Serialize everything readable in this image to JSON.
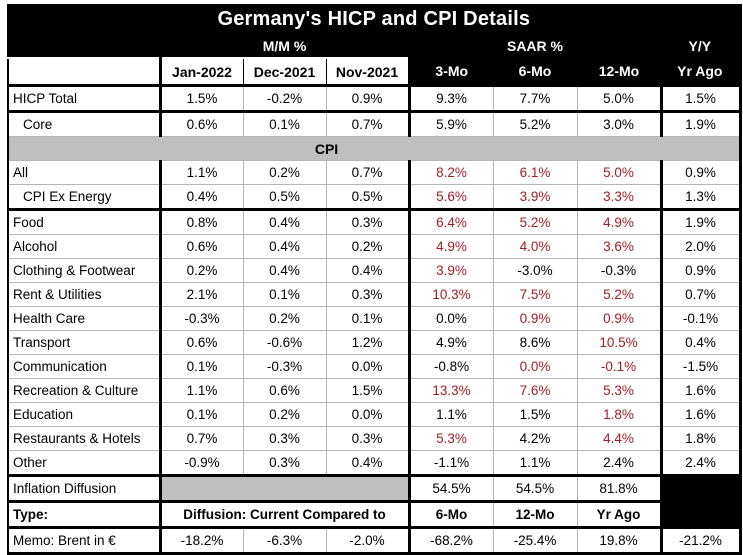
{
  "title": "Germany's HICP and CPI Details",
  "groups": {
    "mm": "M/M %",
    "saar": "SAAR %",
    "yy": "Y/Y"
  },
  "columns": [
    "Jan-2022",
    "Dec-2021",
    "Nov-2021",
    "3-Mo",
    "6-Mo",
    "12-Mo",
    "Yr Ago"
  ],
  "colors": {
    "red": "#a21e28",
    "band_gray": "#bfbfbf",
    "header_bg": "#000000",
    "grid": "#b5b5b5"
  },
  "rows": [
    {
      "label": "HICP Total",
      "sep_after": true,
      "cells": [
        {
          "v": "1.5%"
        },
        {
          "v": "-0.2%"
        },
        {
          "v": "0.9%"
        },
        {
          "v": "9.3%"
        },
        {
          "v": "7.7%"
        },
        {
          "v": "5.0%"
        },
        {
          "v": "1.5%"
        }
      ]
    },
    {
      "label": "Core",
      "indent": true,
      "cells": [
        {
          "v": "0.6%"
        },
        {
          "v": "0.1%"
        },
        {
          "v": "0.7%"
        },
        {
          "v": "5.9%"
        },
        {
          "v": "5.2%"
        },
        {
          "v": "3.0%"
        },
        {
          "v": "1.9%"
        }
      ]
    },
    {
      "type": "section",
      "label": "CPI"
    },
    {
      "label": "All",
      "cells": [
        {
          "v": "1.1%"
        },
        {
          "v": "0.2%"
        },
        {
          "v": "0.7%"
        },
        {
          "v": "8.2%",
          "r": true
        },
        {
          "v": "6.1%",
          "r": true
        },
        {
          "v": "5.0%",
          "r": true
        },
        {
          "v": "0.9%"
        }
      ]
    },
    {
      "label": "CPI Ex Energy",
      "indent": true,
      "sep_after": true,
      "cells": [
        {
          "v": "0.4%"
        },
        {
          "v": "0.5%"
        },
        {
          "v": "0.5%"
        },
        {
          "v": "5.6%",
          "r": true
        },
        {
          "v": "3.9%",
          "r": true
        },
        {
          "v": "3.3%",
          "r": true
        },
        {
          "v": "1.3%"
        }
      ]
    },
    {
      "label": "Food",
      "cells": [
        {
          "v": "0.8%"
        },
        {
          "v": "0.4%"
        },
        {
          "v": "0.3%"
        },
        {
          "v": "6.4%",
          "r": true
        },
        {
          "v": "5.2%",
          "r": true
        },
        {
          "v": "4.9%",
          "r": true
        },
        {
          "v": "1.9%"
        }
      ]
    },
    {
      "label": "Alcohol",
      "cells": [
        {
          "v": "0.6%"
        },
        {
          "v": "0.4%"
        },
        {
          "v": "0.2%"
        },
        {
          "v": "4.9%",
          "r": true
        },
        {
          "v": "4.0%",
          "r": true
        },
        {
          "v": "3.6%",
          "r": true
        },
        {
          "v": "2.0%"
        }
      ]
    },
    {
      "label": "Clothing & Footwear",
      "cells": [
        {
          "v": "0.2%"
        },
        {
          "v": "0.4%"
        },
        {
          "v": "0.4%"
        },
        {
          "v": "3.9%",
          "r": true
        },
        {
          "v": "-3.0%"
        },
        {
          "v": "-0.3%"
        },
        {
          "v": "0.9%"
        }
      ]
    },
    {
      "label": "Rent & Utilities",
      "cells": [
        {
          "v": "2.1%"
        },
        {
          "v": "0.1%"
        },
        {
          "v": "0.3%"
        },
        {
          "v": "10.3%",
          "r": true
        },
        {
          "v": "7.5%",
          "r": true
        },
        {
          "v": "5.2%",
          "r": true
        },
        {
          "v": "0.7%"
        }
      ]
    },
    {
      "label": "Health Care",
      "cells": [
        {
          "v": "-0.3%"
        },
        {
          "v": "0.2%"
        },
        {
          "v": "0.1%"
        },
        {
          "v": "0.0%"
        },
        {
          "v": "0.9%",
          "r": true
        },
        {
          "v": "0.9%",
          "r": true
        },
        {
          "v": "-0.1%"
        }
      ]
    },
    {
      "label": "Transport",
      "cells": [
        {
          "v": "0.6%"
        },
        {
          "v": "-0.6%"
        },
        {
          "v": "1.2%"
        },
        {
          "v": "4.9%"
        },
        {
          "v": "8.6%"
        },
        {
          "v": "10.5%",
          "r": true
        },
        {
          "v": "0.4%"
        }
      ]
    },
    {
      "label": "Communication",
      "cells": [
        {
          "v": "0.1%"
        },
        {
          "v": "-0.3%"
        },
        {
          "v": "0.0%"
        },
        {
          "v": "-0.8%"
        },
        {
          "v": "0.0%",
          "r": true
        },
        {
          "v": "-0.1%",
          "r": true
        },
        {
          "v": "-1.5%"
        }
      ]
    },
    {
      "label": "Recreation & Culture",
      "cells": [
        {
          "v": "1.1%"
        },
        {
          "v": "0.6%"
        },
        {
          "v": "1.5%"
        },
        {
          "v": "13.3%",
          "r": true
        },
        {
          "v": "7.6%",
          "r": true
        },
        {
          "v": "5.3%",
          "r": true
        },
        {
          "v": "1.6%"
        }
      ]
    },
    {
      "label": "Education",
      "cells": [
        {
          "v": "0.1%"
        },
        {
          "v": "0.2%"
        },
        {
          "v": "0.0%"
        },
        {
          "v": "1.1%"
        },
        {
          "v": "1.5%"
        },
        {
          "v": "1.8%",
          "r": true
        },
        {
          "v": "1.6%"
        }
      ]
    },
    {
      "label": "Restaurants & Hotels",
      "cells": [
        {
          "v": "0.7%"
        },
        {
          "v": "0.3%"
        },
        {
          "v": "0.3%"
        },
        {
          "v": "5.3%",
          "r": true
        },
        {
          "v": "4.2%"
        },
        {
          "v": "4.4%",
          "r": true
        },
        {
          "v": "1.8%"
        }
      ]
    },
    {
      "label": "Other",
      "sep_after": true,
      "cells": [
        {
          "v": "-0.9%"
        },
        {
          "v": "0.3%"
        },
        {
          "v": "0.4%"
        },
        {
          "v": "-1.1%"
        },
        {
          "v": "1.1%"
        },
        {
          "v": "2.4%"
        },
        {
          "v": "2.4%"
        }
      ]
    },
    {
      "type": "diffusion",
      "label": "Inflation Diffusion",
      "sep_after": true,
      "values": [
        "54.5%",
        "54.5%",
        "81.8%"
      ]
    },
    {
      "type": "compare",
      "label": "Type:",
      "sep_after": true,
      "merged_label": "Diffusion: Current Compared to",
      "cols": [
        "6-Mo",
        "12-Mo",
        "Yr Ago"
      ]
    },
    {
      "label": "Memo: Brent in €",
      "cells": [
        {
          "v": "-18.2%"
        },
        {
          "v": "-6.3%"
        },
        {
          "v": "-2.0%"
        },
        {
          "v": "-68.2%"
        },
        {
          "v": "-25.4%"
        },
        {
          "v": "19.8%"
        },
        {
          "v": "-21.2%"
        }
      ]
    }
  ]
}
